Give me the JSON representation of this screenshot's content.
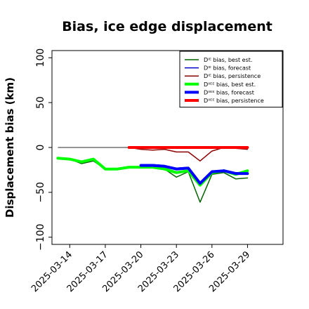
{
  "chart_data": {
    "type": "line",
    "title": "Bias, ice edge displacement",
    "xlabel": "",
    "ylabel": "Displacement bias (km)",
    "ylim": [
      -108,
      108
    ],
    "y_ticks": [
      -100,
      -50,
      0,
      50,
      100
    ],
    "y_tick_labels": [
      "−100",
      "−50",
      "0",
      "50",
      "100"
    ],
    "x_ticks": [
      "2025-03-14",
      "2025-03-17",
      "2025-03-20",
      "2025-03-23",
      "2025-03-26",
      "2025-03-29"
    ],
    "x_tick_highlight": "2025-03-20",
    "x_tick_highlight_color": "#1a8a1a",
    "zero_line": {
      "y": 0,
      "from": "2025-03-13",
      "to": "2025-03-29",
      "color": "#555555"
    },
    "legend_position": "upper right",
    "series": [
      {
        "name": "Dᴵᴱ bias, best est.",
        "color": "#006400",
        "width": 1.5,
        "x": [
          "2025-03-13",
          "2025-03-14",
          "2025-03-15",
          "2025-03-16",
          "2025-03-17",
          "2025-03-18",
          "2025-03-19",
          "2025-03-20",
          "2025-03-21",
          "2025-03-22",
          "2025-03-23",
          "2025-03-24",
          "2025-03-25",
          "2025-03-26",
          "2025-03-27",
          "2025-03-28",
          "2025-03-29"
        ],
        "y": [
          -12,
          -13,
          -18,
          -15,
          -24,
          -24,
          -22,
          -22,
          -22,
          -24,
          -33,
          -27,
          -61,
          -30,
          -28,
          -35,
          -34
        ]
      },
      {
        "name": "Dᴵᴱ bias, forecast",
        "color": "#0000cd",
        "width": 1.5,
        "x": [
          "2025-03-20",
          "2025-03-21",
          "2025-03-22",
          "2025-03-23",
          "2025-03-24",
          "2025-03-25",
          "2025-03-26",
          "2025-03-27",
          "2025-03-28",
          "2025-03-29"
        ],
        "y": [
          -19,
          -19,
          -20,
          -23,
          -22,
          -40,
          -27,
          -25,
          -28,
          -28
        ]
      },
      {
        "name": "Dᴵᴱ bias, persistence",
        "color": "#8b0000",
        "width": 1.5,
        "x": [
          "2025-03-19",
          "2025-03-20",
          "2025-03-21",
          "2025-03-22",
          "2025-03-23",
          "2025-03-24",
          "2025-03-25",
          "2025-03-26",
          "2025-03-27",
          "2025-03-28",
          "2025-03-29"
        ],
        "y": [
          0,
          -2,
          -3,
          -2,
          -5,
          -5,
          -15,
          -4,
          0,
          -1,
          -2
        ]
      },
      {
        "name": "Dᴵᴵᴱᴱ bias, best est.",
        "color": "#00ff00",
        "width": 4,
        "x": [
          "2025-03-13",
          "2025-03-14",
          "2025-03-15",
          "2025-03-16",
          "2025-03-17",
          "2025-03-18",
          "2025-03-19",
          "2025-03-20",
          "2025-03-21",
          "2025-03-22",
          "2025-03-23",
          "2025-03-24",
          "2025-03-25",
          "2025-03-26",
          "2025-03-27",
          "2025-03-28",
          "2025-03-29"
        ],
        "y": [
          -12,
          -13,
          -16,
          -13,
          -24,
          -24,
          -22,
          -22,
          -22,
          -24,
          -28,
          -26,
          -42,
          -28,
          -26,
          -30,
          -26
        ]
      },
      {
        "name": "Dᴵᴵᴱᴱ bias, forecast",
        "color": "#0000ff",
        "width": 4,
        "x": [
          "2025-03-20",
          "2025-03-21",
          "2025-03-22",
          "2025-03-23",
          "2025-03-24",
          "2025-03-25",
          "2025-03-26",
          "2025-03-27",
          "2025-03-28",
          "2025-03-29"
        ],
        "y": [
          -20,
          -20,
          -21,
          -24,
          -23,
          -40,
          -27,
          -26,
          -29,
          -29
        ]
      },
      {
        "name": "Dᴵᴵᴱᴱ bias, persistence",
        "color": "#ff0000",
        "width": 4,
        "x": [
          "2025-03-19",
          "2025-03-20",
          "2025-03-21",
          "2025-03-22",
          "2025-03-23",
          "2025-03-24",
          "2025-03-25",
          "2025-03-26",
          "2025-03-27",
          "2025-03-28",
          "2025-03-29"
        ],
        "y": [
          0,
          0,
          0,
          0,
          0,
          0,
          0,
          0,
          0,
          0,
          0
        ]
      }
    ]
  }
}
